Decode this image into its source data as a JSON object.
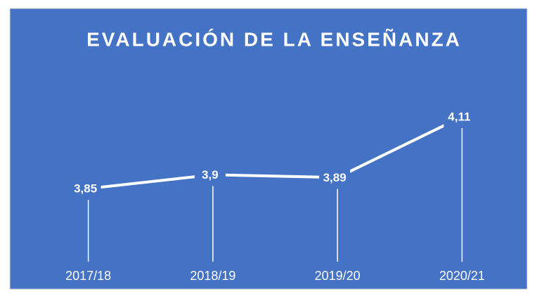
{
  "chart_data": {
    "type": "line",
    "title": "EVALUACIÓN DE LA ENSEÑANZA",
    "categories": [
      "2017/18",
      "2018/19",
      "2019/20",
      "2020/21"
    ],
    "values": [
      3.85,
      3.9,
      3.89,
      4.11
    ],
    "value_labels": [
      "3,85",
      "3,9",
      "3,89",
      "4,11"
    ],
    "color": "#ffffff",
    "drop_lines": true
  }
}
